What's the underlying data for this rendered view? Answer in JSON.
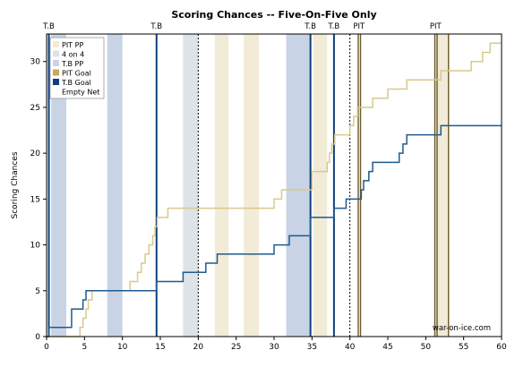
{
  "chart_data": {
    "type": "line",
    "title": "Scoring Chances -- Five-On-Five Only",
    "xlabel": "",
    "ylabel": "Scoring Chances",
    "xlim": [
      0,
      60
    ],
    "ylim": [
      0,
      33
    ],
    "x_ticks": [
      0,
      5,
      10,
      15,
      20,
      25,
      30,
      35,
      40,
      45,
      50,
      55,
      60
    ],
    "y_ticks": [
      0,
      5,
      10,
      15,
      20,
      25,
      30
    ],
    "period_ends": [
      20,
      40
    ],
    "watermark": "war-on-ice.com",
    "legend_position": "top-left",
    "legend": [
      {
        "label": "PIT PP",
        "swatch": "pit-pp"
      },
      {
        "label": "4 on 4",
        "swatch": "four-on-four"
      },
      {
        "label": "T.B PP",
        "swatch": "tb-pp"
      },
      {
        "label": "PIT Goal",
        "swatch": "pit-goal"
      },
      {
        "label": "T.B Goal",
        "swatch": "tb-goal"
      },
      {
        "label": "Empty Net",
        "swatch": "empty-net"
      }
    ],
    "colors": {
      "pit_line": "#d9c88e",
      "tb_line": "#1f5a8e",
      "pit_pp": "#f1ebd7",
      "tb_pp": "#c8d4e6",
      "four_on_four": "#dde3e6",
      "pit_goal": "#c9a85a",
      "tb_goal": "#0d3f7a"
    },
    "shaded_regions": [
      {
        "type": "tb_pp",
        "start": 0.6,
        "end": 2.6
      },
      {
        "type": "tb_pp",
        "start": 8.0,
        "end": 10.0
      },
      {
        "type": "four_on_four",
        "start": 18.0,
        "end": 20.0
      },
      {
        "type": "pit_pp",
        "start": 22.2,
        "end": 24.0
      },
      {
        "type": "pit_pp",
        "start": 26.0,
        "end": 28.0
      },
      {
        "type": "tb_pp",
        "start": 31.6,
        "end": 34.8
      },
      {
        "type": "pit_pp",
        "start": 35.2,
        "end": 37.0
      },
      {
        "type": "pit_pp",
        "start": 51.2,
        "end": 53.0
      }
    ],
    "goals": [
      {
        "team": "T.B",
        "time": 0.3
      },
      {
        "team": "T.B",
        "time": 14.5
      },
      {
        "team": "T.B",
        "time": 34.8
      },
      {
        "team": "T.B",
        "time": 37.9
      },
      {
        "team": "PIT",
        "time": 41.1
      },
      {
        "team": "PIT",
        "time": 41.4
      },
      {
        "team": "PIT",
        "time": 51.2
      },
      {
        "team": "PIT",
        "time": 51.5
      },
      {
        "team": "PIT",
        "time": 53.0
      }
    ],
    "top_labels": [
      {
        "text": "T.B",
        "time": 0.3
      },
      {
        "text": "T.B",
        "time": 14.5
      },
      {
        "text": "T.B",
        "time": 34.8
      },
      {
        "text": "T.B",
        "time": 37.9
      },
      {
        "text": "PIT",
        "time": 41.2
      },
      {
        "text": "PIT",
        "time": 51.3
      }
    ],
    "series": [
      {
        "name": "PIT",
        "color": "#d9c88e",
        "x": [
          0,
          4.4,
          4.8,
          5.2,
          5.5,
          6.0,
          8.5,
          9.0,
          9.5,
          10.0,
          10.5,
          11.0,
          11.5,
          12.0,
          12.5,
          13.0,
          13.5,
          14.0,
          14.3,
          14.6,
          15.0,
          16.0,
          18.0,
          24.0,
          30.0,
          31.0,
          35.0,
          37.0,
          37.3,
          37.6,
          38.0,
          38.5,
          39.0,
          39.5,
          40.0,
          40.5,
          41.0,
          41.3,
          43.0,
          45.0,
          47.5,
          52.0,
          53.0,
          56.0,
          57.5,
          58.5,
          59.0,
          60.0
        ],
        "y": [
          0,
          1,
          2,
          3,
          4,
          5,
          5,
          5,
          5,
          5,
          5,
          6,
          6,
          7,
          8,
          9,
          10,
          11,
          12,
          13,
          13,
          14,
          14,
          14,
          15,
          16,
          18,
          19,
          20,
          21,
          22,
          22,
          22,
          22,
          23,
          24,
          25,
          25,
          26,
          27,
          28,
          29,
          29,
          30,
          31,
          32,
          32,
          32
        ]
      },
      {
        "name": "T.B",
        "color": "#1f5a8e",
        "x": [
          0,
          0.3,
          3.3,
          3.5,
          4.8,
          5.2,
          5.6,
          14.5,
          18.0,
          20.4,
          21.0,
          22.5,
          29.0,
          30.0,
          32.0,
          34.8,
          37.9,
          38.1,
          39.5,
          41.2,
          41.5,
          41.8,
          42.5,
          43.0,
          46.5,
          47.0,
          47.5,
          52.0,
          60.0
        ],
        "y": [
          0,
          1,
          3,
          3,
          4,
          5,
          5,
          6,
          7,
          7,
          8,
          9,
          9,
          10,
          11,
          13,
          14,
          14,
          15,
          15,
          16,
          17,
          18,
          19,
          20,
          21,
          22,
          23,
          23
        ]
      }
    ]
  }
}
